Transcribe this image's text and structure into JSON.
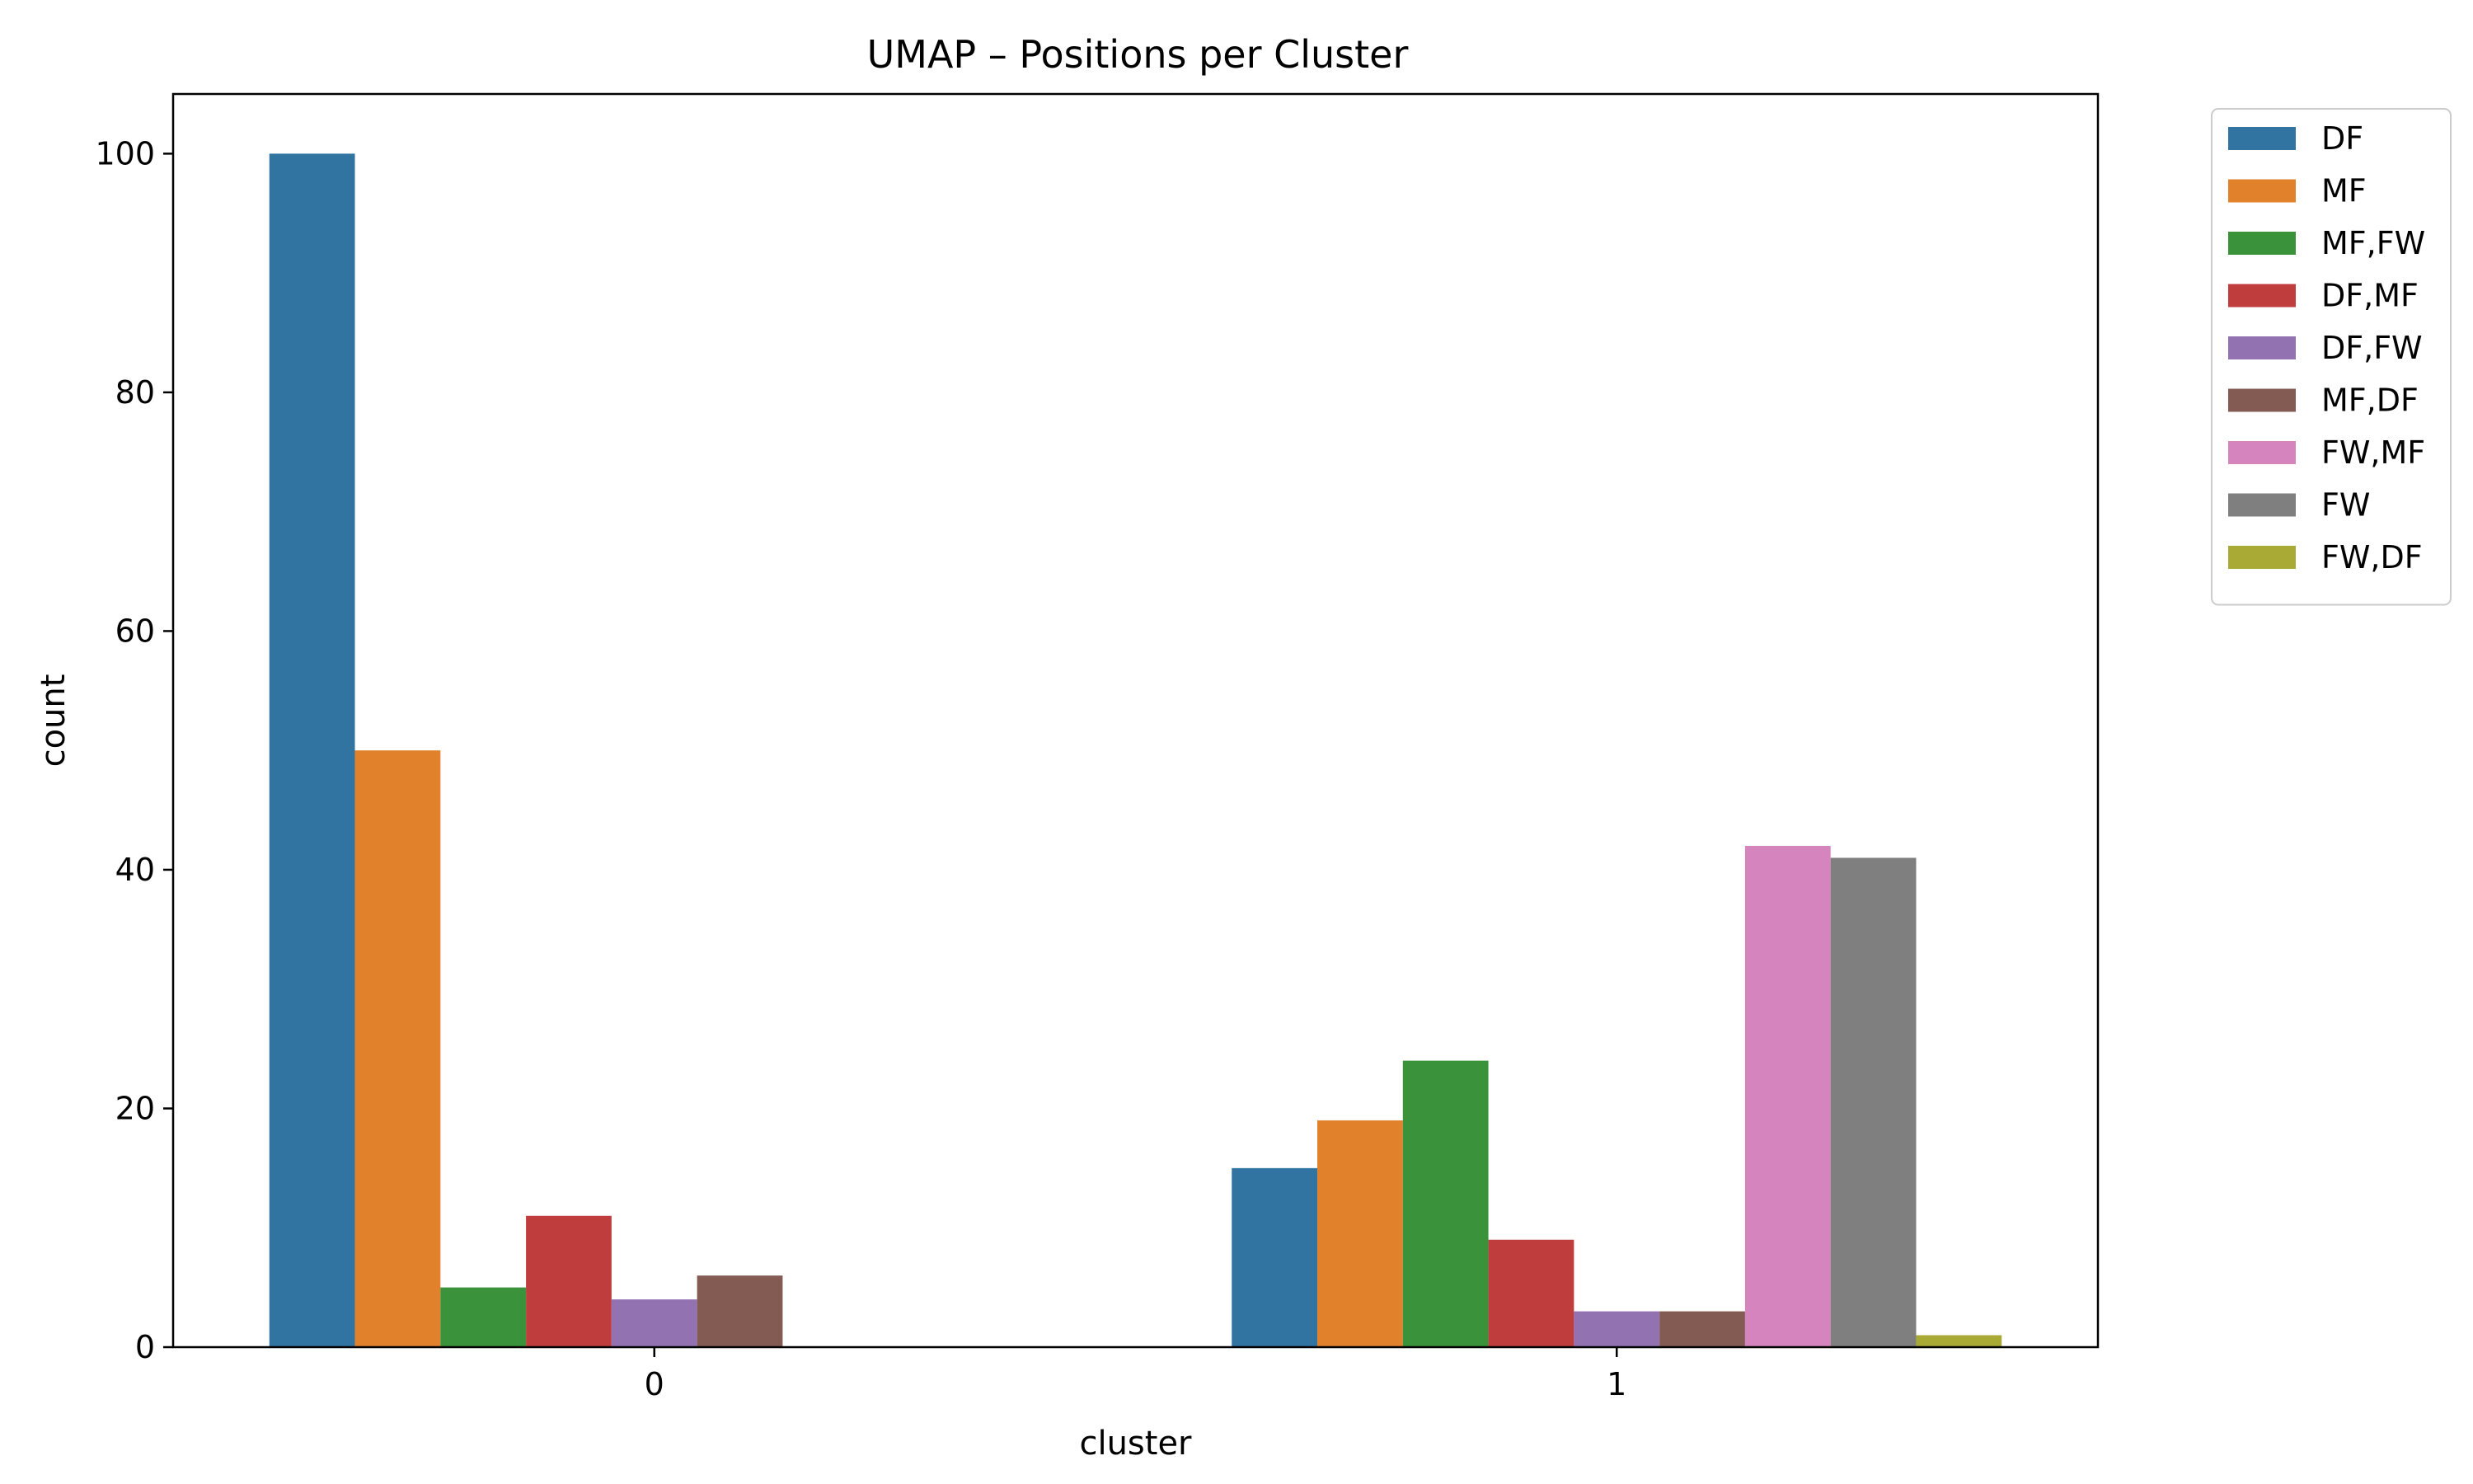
{
  "chart_data": {
    "type": "bar",
    "title": "UMAP – Positions per Cluster",
    "xlabel": "cluster",
    "ylabel": "count",
    "categories": [
      "0",
      "1"
    ],
    "ylim": [
      0,
      105
    ],
    "yticks": [
      0,
      20,
      40,
      60,
      80,
      100
    ],
    "grid": false,
    "legend_position": "outside-top-right",
    "series": [
      {
        "name": "DF",
        "color": "#3274a1",
        "values": [
          100,
          15
        ]
      },
      {
        "name": "MF",
        "color": "#e1812c",
        "values": [
          50,
          19
        ]
      },
      {
        "name": "MF,FW",
        "color": "#3a923a",
        "values": [
          5,
          24
        ]
      },
      {
        "name": "DF,MF",
        "color": "#c03d3e",
        "values": [
          11,
          9
        ]
      },
      {
        "name": "DF,FW",
        "color": "#9372b2",
        "values": [
          4,
          3
        ]
      },
      {
        "name": "MF,DF",
        "color": "#845b53",
        "values": [
          6,
          3
        ]
      },
      {
        "name": "FW,MF",
        "color": "#d684bd",
        "values": [
          0,
          42
        ]
      },
      {
        "name": "FW",
        "color": "#7f7f7f",
        "values": [
          0,
          41
        ]
      },
      {
        "name": "FW,DF",
        "color": "#a9aa35",
        "values": [
          0,
          1
        ]
      }
    ]
  }
}
